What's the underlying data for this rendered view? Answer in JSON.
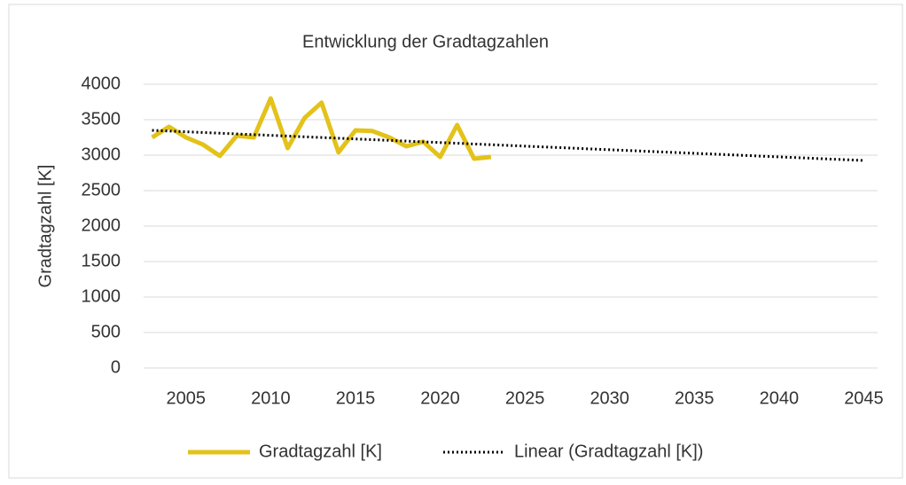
{
  "chart_data": {
    "type": "line",
    "title": "Entwicklung der Gradtagzahlen",
    "y_label": "Gradtagzahl [K]",
    "series": [
      {
        "name": "Gradtagzahl [K]",
        "color": "#e3c21a",
        "style": "solid",
        "x": [
          2003,
          2004,
          2005,
          2006,
          2007,
          2008,
          2009,
          2010,
          2011,
          2012,
          2013,
          2014,
          2015,
          2016,
          2017,
          2018,
          2019,
          2020,
          2021,
          2022,
          2023
        ],
        "values": [
          3250,
          3400,
          3250,
          3150,
          2990,
          3275,
          3250,
          3800,
          3100,
          3525,
          3740,
          3040,
          3350,
          3340,
          3250,
          3125,
          3190,
          2975,
          3425,
          2950,
          2975
        ]
      },
      {
        "name": "Linear (Gradtagzahl [K])",
        "color": "#000000",
        "style": "dotted",
        "x": [
          2003,
          2045
        ],
        "values": [
          3350,
          2925
        ]
      }
    ],
    "xlim": [
      2002.5,
      2045.5
    ],
    "xticks": [
      2005,
      2010,
      2015,
      2020,
      2025,
      2030,
      2035,
      2040,
      2045
    ],
    "ylim": [
      0,
      4000
    ],
    "yticks": [
      0,
      500,
      1000,
      1500,
      2000,
      2500,
      3000,
      3500,
      4000
    ],
    "grid": true,
    "legend": "bottom"
  }
}
